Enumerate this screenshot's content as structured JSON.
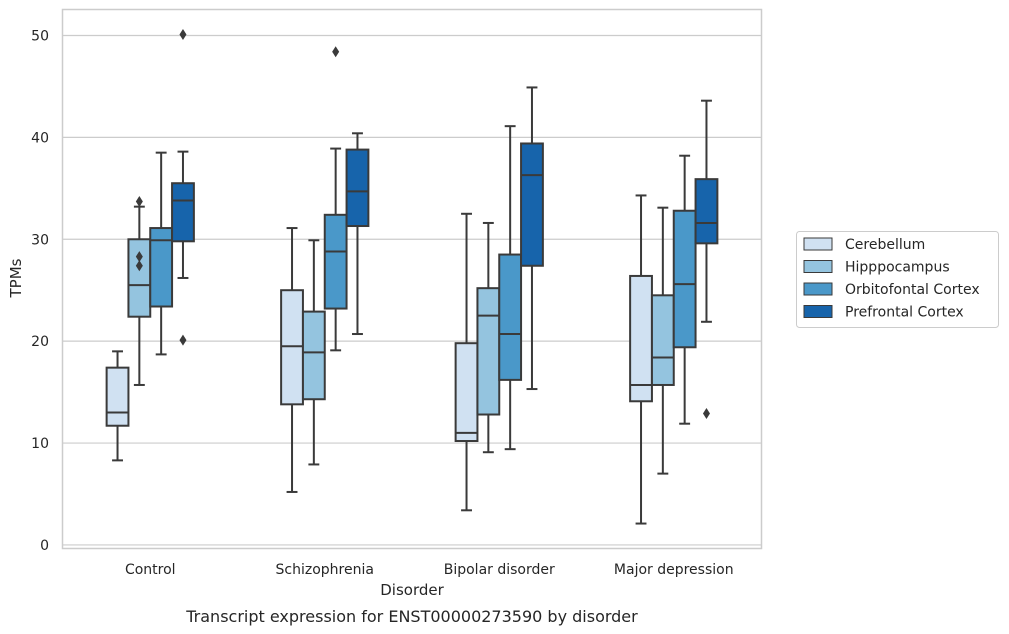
{
  "chart_data": {
    "type": "box",
    "title": "",
    "caption": "Transcript expression for ENST00000273590 by disorder",
    "xlabel": "Disorder",
    "ylabel": "TPMs",
    "ylim": [
      -0.3,
      52.5
    ],
    "yticks": [
      0,
      10,
      20,
      30,
      40,
      50
    ],
    "grid": true,
    "legend_placement": "right",
    "categories": [
      "Control",
      "Schizophrenia",
      "Bipolar disorder",
      "Major depression"
    ],
    "series": [
      {
        "name": "Cerebellum",
        "color": "#d0e1f2",
        "boxes": [
          {
            "whisker_low": 8.3,
            "q1": 11.7,
            "median": 13.0,
            "q3": 17.4,
            "whisker_high": 19.0,
            "outliers": []
          },
          {
            "whisker_low": 5.2,
            "q1": 13.8,
            "median": 19.5,
            "q3": 25.0,
            "whisker_high": 31.1,
            "outliers": []
          },
          {
            "whisker_low": 3.4,
            "q1": 10.2,
            "median": 11.0,
            "q3": 19.8,
            "whisker_high": 32.5,
            "outliers": []
          },
          {
            "whisker_low": 2.1,
            "q1": 14.1,
            "median": 15.7,
            "q3": 26.4,
            "whisker_high": 34.3,
            "outliers": []
          }
        ]
      },
      {
        "name": "Hipppocampus",
        "color": "#94c4df",
        "boxes": [
          {
            "whisker_low": 15.7,
            "q1": 22.4,
            "median": 25.5,
            "q3": 30.0,
            "whisker_high": 33.2,
            "outliers": [
              33.7,
              28.3,
              27.4
            ]
          },
          {
            "whisker_low": 7.9,
            "q1": 14.3,
            "median": 18.9,
            "q3": 22.9,
            "whisker_high": 29.9,
            "outliers": []
          },
          {
            "whisker_low": 9.1,
            "q1": 12.8,
            "median": 22.5,
            "q3": 25.2,
            "whisker_high": 31.6,
            "outliers": []
          },
          {
            "whisker_low": 7.0,
            "q1": 15.7,
            "median": 18.4,
            "q3": 24.5,
            "whisker_high": 33.1,
            "outliers": []
          }
        ]
      },
      {
        "name": "Orbitofontal Cortex",
        "color": "#4a98c9",
        "boxes": [
          {
            "whisker_low": 18.7,
            "q1": 23.4,
            "median": 29.9,
            "q3": 31.1,
            "whisker_high": 38.5,
            "outliers": []
          },
          {
            "whisker_low": 19.1,
            "q1": 23.2,
            "median": 28.8,
            "q3": 32.4,
            "whisker_high": 38.9,
            "outliers": [
              48.4
            ]
          },
          {
            "whisker_low": 9.4,
            "q1": 16.2,
            "median": 20.7,
            "q3": 28.5,
            "whisker_high": 41.1,
            "outliers": []
          },
          {
            "whisker_low": 11.9,
            "q1": 19.4,
            "median": 25.6,
            "q3": 32.8,
            "whisker_high": 38.2,
            "outliers": []
          }
        ]
      },
      {
        "name": "Prefrontal Cortex",
        "color": "#1764ab",
        "boxes": [
          {
            "whisker_low": 26.2,
            "q1": 29.8,
            "median": 33.8,
            "q3": 35.5,
            "whisker_high": 38.6,
            "outliers": [
              50.1,
              20.1
            ]
          },
          {
            "whisker_low": 20.7,
            "q1": 31.3,
            "median": 34.7,
            "q3": 38.8,
            "whisker_high": 40.4,
            "outliers": []
          },
          {
            "whisker_low": 15.3,
            "q1": 27.4,
            "median": 36.3,
            "q3": 39.4,
            "whisker_high": 44.9,
            "outliers": []
          },
          {
            "whisker_low": 21.9,
            "q1": 29.6,
            "median": 31.6,
            "q3": 35.9,
            "whisker_high": 43.6,
            "outliers": [
              12.9
            ]
          }
        ]
      }
    ]
  }
}
